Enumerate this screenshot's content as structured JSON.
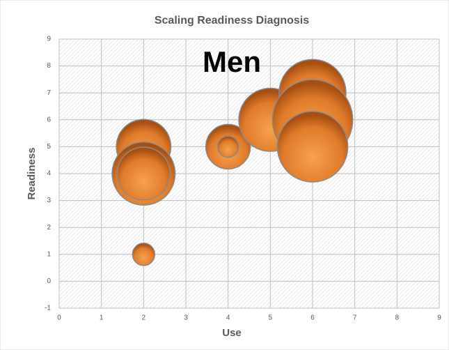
{
  "chart_data": {
    "type": "bubble",
    "title": "Scaling Readiness Diagnosis",
    "annotation": "Men",
    "x_label": "Use",
    "y_label": "Readiness",
    "series": [
      {
        "color": "#e07b2a",
        "x": [
          2,
          2,
          2,
          2,
          4,
          4,
          5,
          6,
          6,
          6
        ],
        "values": [
          1,
          5,
          4,
          4,
          5,
          5,
          6,
          7,
          6,
          5
        ],
        "sizes": [
          1,
          6,
          8,
          5.6,
          4,
          0.9,
          8,
          9,
          13,
          10
        ]
      }
    ],
    "xlim": [
      0,
      9
    ],
    "xticks": [
      0,
      1,
      2,
      3,
      4,
      5,
      6,
      7,
      8,
      9
    ],
    "ylim": [
      -1,
      9
    ],
    "yticks": [
      -1,
      0,
      1,
      2,
      3,
      4,
      5,
      6,
      7,
      8,
      9
    ],
    "grid": true
  }
}
